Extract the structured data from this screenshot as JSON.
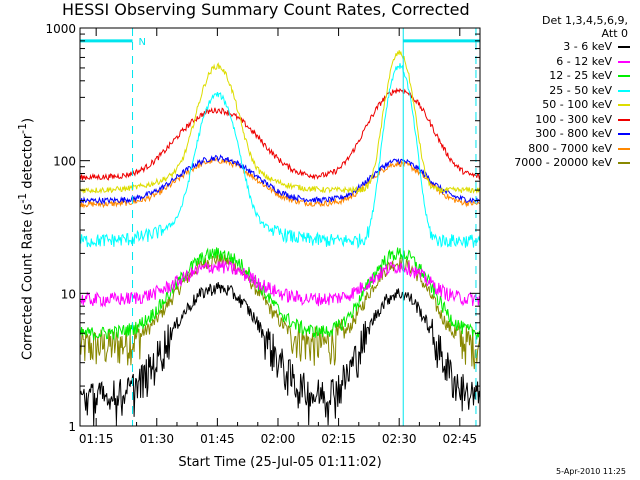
{
  "chart_data": {
    "type": "line",
    "title": "HESSI Observing Summary Count Rates, Corrected",
    "xlabel": "Start Time (25-Jul-05 01:11:02)",
    "ylabel_pre": "Corrected Count Rate (s",
    "ylabel_sup1": "-1",
    "ylabel_mid": " detector",
    "ylabel_sup2": "-1",
    "ylabel_post": ")",
    "y_scale": "log",
    "ylim": [
      1,
      1000
    ],
    "xlim_minutes": [
      71,
      170
    ],
    "x_ticks": [
      "01:15",
      "01:30",
      "01:45",
      "02:00",
      "02:15",
      "02:30",
      "02:45"
    ],
    "y_ticks": [
      "1",
      "10",
      "100",
      "1000"
    ],
    "detectors_line1": "Det 1,3,4,5,6,9,",
    "detectors_line2": "Att 0",
    "timestamp": "5-Apr-2010 11:25",
    "flag_label": "N",
    "series": [
      {
        "name": "3 - 6 keV",
        "color": "#000000",
        "base": 1.6,
        "peak1": 11,
        "peak2": 10
      },
      {
        "name": "6 - 12 keV",
        "color": "#ff00ff",
        "base": 9,
        "peak1": 16,
        "peak2": 16
      },
      {
        "name": "12 - 25 keV",
        "color": "#00ee00",
        "base": 5,
        "peak1": 20,
        "peak2": 20
      },
      {
        "name": "25 - 50 keV",
        "color": "#00ffff",
        "base": 25,
        "peak1": 300,
        "peak2": 520
      },
      {
        "name": "50 - 100 keV",
        "color": "#dddd00",
        "base": 60,
        "peak1": 480,
        "peak2": 650
      },
      {
        "name": "100 - 300 keV",
        "color": "#ee0000",
        "base": 75,
        "peak1": 240,
        "peak2": 340
      },
      {
        "name": "300 - 800 keV",
        "color": "#0000ff",
        "base": 50,
        "peak1": 105,
        "peak2": 100
      },
      {
        "name": "800 - 7000 keV",
        "color": "#ff8800",
        "base": 47,
        "peak1": 100,
        "peak2": 95
      },
      {
        "name": "7000 - 20000 keV",
        "color": "#888800",
        "base": 4,
        "peak1": 18,
        "peak2": 17
      }
    ]
  }
}
